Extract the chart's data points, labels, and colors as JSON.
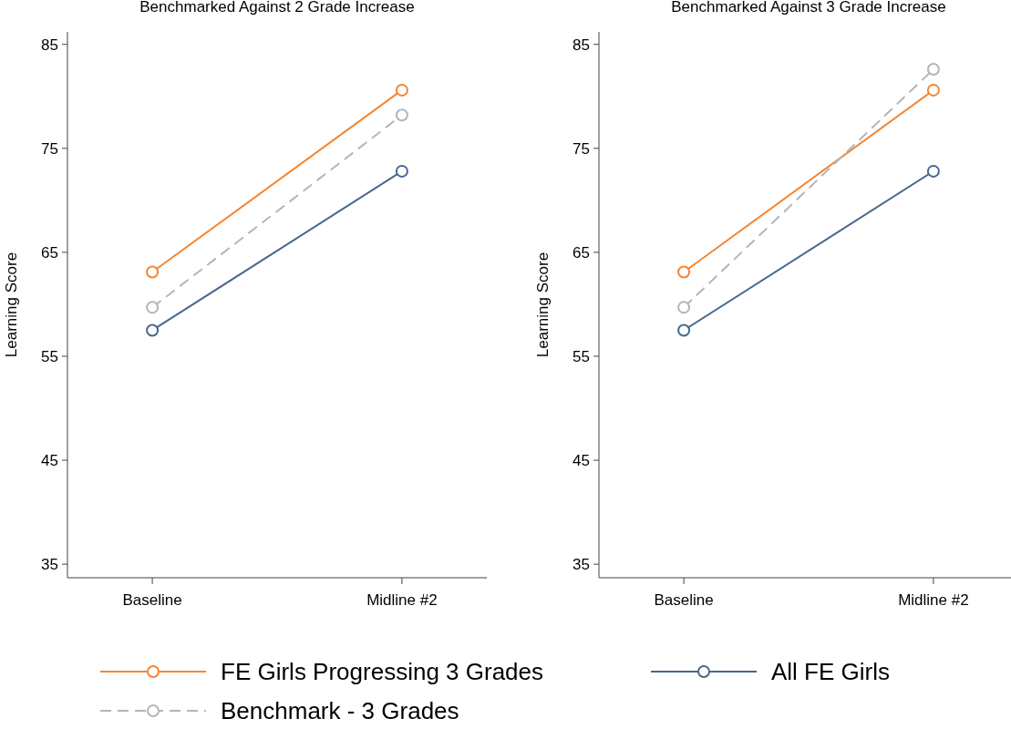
{
  "chart_data": [
    {
      "type": "line",
      "title": "Benchmarked Against 2 Grade Increase",
      "ylabel": "Learning Score",
      "categories": [
        "Baseline",
        "Midline #2"
      ],
      "marker": "circle",
      "legend": "bottom",
      "ylim": [
        33.7,
        86.2
      ],
      "yticks": [
        35,
        45,
        55,
        65,
        75,
        85
      ],
      "series": [
        {
          "name": "FE Girls Progressing 3 Grades",
          "color": "#f5852f",
          "values": [
            63.1,
            80.6
          ],
          "line_style": "solid"
        },
        {
          "name": "All FE Girls",
          "color": "#48678f",
          "values": [
            57.5,
            72.8
          ],
          "line_style": "solid"
        },
        {
          "name": "Benchmark - 3 Grades",
          "color": "#b5b5b5",
          "values": [
            59.7,
            78.2
          ],
          "line_style": "dashed"
        }
      ]
    },
    {
      "type": "line",
      "title": "Benchmarked Against 3 Grade Increase",
      "ylabel": "Learning Score",
      "categories": [
        "Baseline",
        "Midline #2"
      ],
      "marker": "circle",
      "ylim": [
        33.7,
        86.2
      ],
      "yticks": [
        35,
        45,
        55,
        65,
        75,
        85
      ],
      "series": [
        {
          "color": "#f5852f",
          "values": [
            63.1,
            80.6
          ],
          "line_style": "solid"
        },
        {
          "color": "#48678f",
          "values": [
            57.5,
            72.8
          ],
          "line_style": "solid"
        },
        {
          "color": "#b5b5b5",
          "values": [
            59.7,
            82.6
          ],
          "line_style": "dashed"
        }
      ]
    }
  ]
}
